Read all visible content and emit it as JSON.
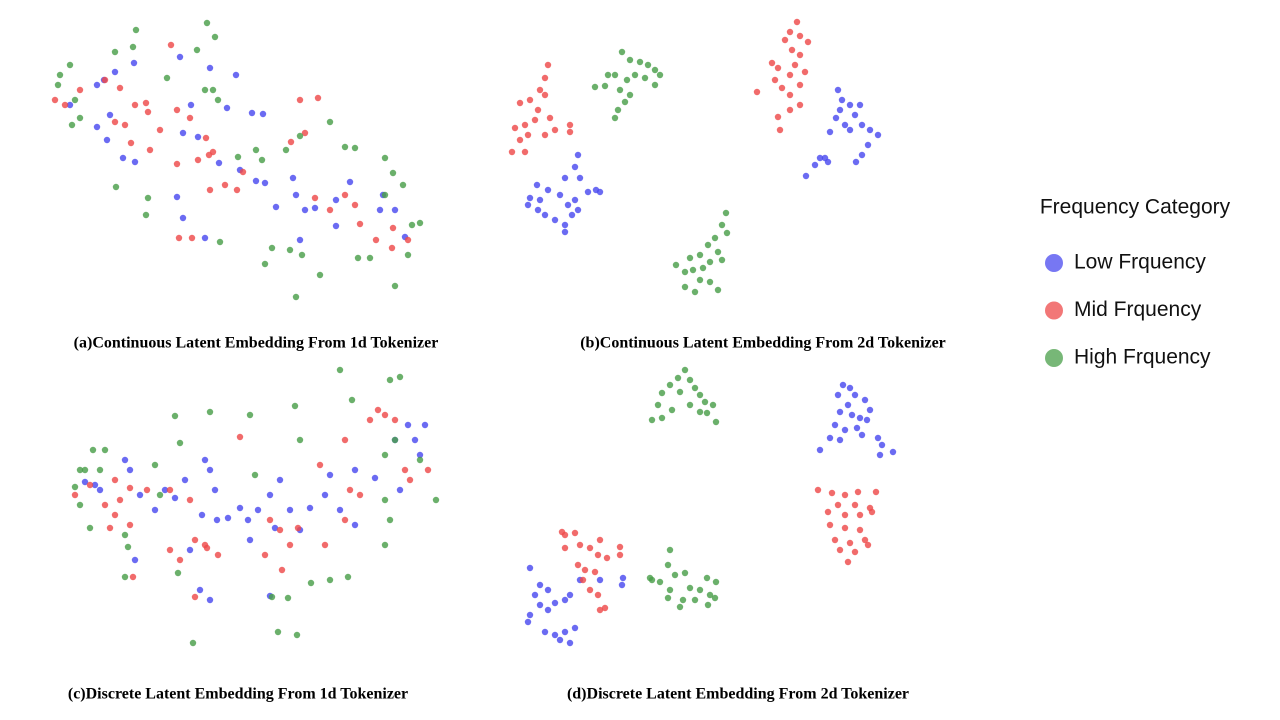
{
  "legend": {
    "title": "Frequency Category"
  },
  "chart_data": [
    {
      "type": "scatter",
      "title": "(a)Continuous Latent Embedding From 1d Tokenizer",
      "xlim": [
        40,
        440
      ],
      "ylim": [
        310,
        10
      ],
      "series": [
        {
          "name": "Low Frquency",
          "color": "#4a4aef",
          "x": [
            70,
            97,
            104,
            115,
            134,
            180,
            210,
            236,
            227,
            252,
            263,
            107,
            123,
            135,
            183,
            198,
            219,
            240,
            256,
            265,
            293,
            296,
            305,
            276,
            315,
            336,
            350,
            380,
            383,
            395,
            405,
            336,
            300,
            205,
            183,
            177,
            191,
            97,
            110
          ],
          "values": [
            105,
            85,
            80,
            72,
            63,
            57,
            68,
            75,
            108,
            113,
            114,
            140,
            158,
            162,
            133,
            137,
            163,
            170,
            181,
            183,
            178,
            195,
            210,
            207,
            208,
            200,
            182,
            210,
            195,
            210,
            237,
            226,
            240,
            238,
            218,
            197,
            105,
            127,
            115
          ]
        },
        {
          "name": "Mid Frquency",
          "color": "#ee4a4a",
          "x": [
            55,
            65,
            80,
            105,
            120,
            135,
            146,
            160,
            150,
            131,
            171,
            177,
            190,
            206,
            213,
            209,
            198,
            177,
            210,
            225,
            237,
            243,
            300,
            318,
            305,
            291,
            315,
            330,
            345,
            355,
            360,
            376,
            392,
            408,
            393,
            179,
            192,
            125,
            115,
            148
          ],
          "values": [
            100,
            105,
            90,
            80,
            88,
            105,
            103,
            130,
            150,
            143,
            45,
            110,
            118,
            138,
            152,
            155,
            160,
            164,
            190,
            185,
            190,
            172,
            100,
            98,
            133,
            142,
            198,
            210,
            195,
            205,
            224,
            240,
            248,
            240,
            228,
            238,
            238,
            125,
            122,
            112
          ]
        },
        {
          "name": "High Frquency",
          "color": "#4a9f4a",
          "x": [
            60,
            70,
            58,
            75,
            72,
            115,
            133,
            136,
            167,
            197,
            207,
            215,
            213,
            218,
            238,
            256,
            262,
            286,
            300,
            330,
            345,
            355,
            385,
            393,
            403,
            385,
            412,
            420,
            116,
            148,
            146,
            220,
            265,
            272,
            290,
            302,
            296,
            320,
            358,
            370,
            395,
            408,
            205,
            80
          ],
          "values": [
            75,
            65,
            85,
            100,
            125,
            52,
            47,
            30,
            78,
            50,
            23,
            37,
            90,
            100,
            157,
            150,
            160,
            150,
            136,
            122,
            147,
            148,
            158,
            173,
            185,
            195,
            225,
            223,
            187,
            198,
            215,
            242,
            264,
            248,
            250,
            255,
            297,
            275,
            258,
            258,
            286,
            255,
            90,
            118
          ]
        }
      ]
    },
    {
      "type": "scatter",
      "title": "(b)Continuous Latent Embedding From 2d Tokenizer",
      "xlim": [
        500,
        900
      ],
      "ylim": [
        310,
        10
      ],
      "series": [
        {
          "name": "Low Frquency",
          "color": "#4a4aef",
          "x": [
            578,
            575,
            565,
            537,
            530,
            528,
            540,
            548,
            560,
            568,
            575,
            578,
            572,
            565,
            565,
            545,
            538,
            555,
            596,
            600,
            588,
            580,
            838,
            842,
            840,
            850,
            860,
            855,
            845,
            850,
            862,
            870,
            878,
            868,
            862,
            856,
            836,
            830,
            820,
            815,
            828,
            806,
            825
          ],
          "values": [
            155,
            167,
            178,
            185,
            198,
            205,
            200,
            190,
            195,
            205,
            200,
            210,
            215,
            225,
            232,
            215,
            210,
            220,
            190,
            192,
            192,
            178,
            90,
            100,
            110,
            105,
            105,
            115,
            125,
            130,
            125,
            130,
            135,
            145,
            155,
            162,
            118,
            132,
            158,
            165,
            162,
            176,
            158
          ]
        },
        {
          "name": "Mid Frquency",
          "color": "#ee4a4a",
          "x": [
            548,
            545,
            540,
            545,
            530,
            520,
            538,
            535,
            525,
            515,
            520,
            512,
            525,
            545,
            555,
            570,
            570,
            550,
            528,
            797,
            790,
            800,
            808,
            785,
            792,
            800,
            795,
            805,
            790,
            778,
            772,
            775,
            782,
            790,
            800,
            790,
            778,
            780,
            757,
            800
          ],
          "values": [
            65,
            78,
            90,
            95,
            100,
            103,
            110,
            120,
            125,
            128,
            140,
            152,
            152,
            135,
            130,
            125,
            132,
            118,
            135,
            22,
            32,
            36,
            42,
            40,
            50,
            55,
            65,
            72,
            75,
            68,
            63,
            80,
            88,
            95,
            105,
            110,
            117,
            130,
            92,
            85
          ]
        },
        {
          "name": "High Frquency",
          "color": "#4a9f4a",
          "x": [
            622,
            630,
            640,
            648,
            655,
            660,
            645,
            635,
            627,
            615,
            608,
            595,
            605,
            620,
            630,
            625,
            615,
            618,
            655,
            726,
            722,
            715,
            708,
            718,
            700,
            710,
            722,
            690,
            676,
            685,
            693,
            700,
            710,
            718,
            695,
            685,
            727,
            703
          ],
          "values": [
            52,
            60,
            62,
            65,
            70,
            75,
            78,
            75,
            80,
            75,
            75,
            87,
            86,
            90,
            95,
            102,
            118,
            110,
            85,
            213,
            225,
            238,
            245,
            252,
            255,
            262,
            260,
            258,
            265,
            272,
            270,
            280,
            282,
            290,
            292,
            287,
            233,
            268
          ]
        }
      ]
    },
    {
      "type": "scatter",
      "title": "(c)Discrete Latent Embedding From 1d Tokenizer",
      "xlim": [
        40,
        450
      ],
      "ylim": [
        660,
        360
      ],
      "series": [
        {
          "name": "Low Frquency",
          "color": "#4a4aef",
          "x": [
            85,
            95,
            100,
            125,
            130,
            140,
            165,
            175,
            185,
            205,
            210,
            215,
            202,
            217,
            228,
            240,
            248,
            258,
            270,
            280,
            290,
            300,
            310,
            325,
            330,
            340,
            355,
            355,
            375,
            395,
            408,
            415,
            425,
            420,
            400,
            270,
            200,
            210,
            250,
            190,
            135,
            155,
            275
          ],
          "values": [
            482,
            485,
            490,
            460,
            470,
            495,
            490,
            498,
            480,
            460,
            470,
            490,
            515,
            520,
            518,
            508,
            520,
            510,
            495,
            480,
            510,
            530,
            508,
            495,
            475,
            510,
            470,
            525,
            478,
            440,
            425,
            440,
            425,
            455,
            490,
            596,
            590,
            600,
            540,
            550,
            560,
            510,
            528
          ]
        },
        {
          "name": "Mid Frquency",
          "color": "#ee4a4a",
          "x": [
            75,
            90,
            105,
            115,
            130,
            120,
            115,
            130,
            110,
            147,
            170,
            190,
            170,
            180,
            195,
            207,
            218,
            240,
            270,
            280,
            290,
            265,
            282,
            298,
            320,
            345,
            350,
            360,
            370,
            378,
            385,
            395,
            405,
            410,
            428,
            133,
            205,
            195,
            345,
            325
          ],
          "values": [
            495,
            485,
            505,
            480,
            488,
            500,
            515,
            525,
            528,
            490,
            490,
            500,
            550,
            560,
            540,
            548,
            555,
            437,
            520,
            530,
            545,
            555,
            570,
            528,
            465,
            440,
            490,
            495,
            420,
            410,
            415,
            420,
            470,
            480,
            470,
            577,
            545,
            597,
            520,
            545
          ]
        },
        {
          "name": "High Frquency",
          "color": "#4a9f4a",
          "x": [
            80,
            85,
            75,
            93,
            105,
            100,
            80,
            90,
            125,
            128,
            125,
            155,
            160,
            175,
            180,
            210,
            178,
            250,
            255,
            295,
            300,
            340,
            352,
            390,
            400,
            395,
            385,
            385,
            390,
            385,
            330,
            348,
            311,
            288,
            272,
            278,
            297,
            193,
            436,
            420
          ],
          "values": [
            470,
            470,
            487,
            450,
            450,
            470,
            505,
            528,
            535,
            547,
            577,
            465,
            495,
            416,
            443,
            412,
            573,
            415,
            475,
            406,
            440,
            370,
            400,
            380,
            377,
            440,
            455,
            500,
            520,
            545,
            580,
            577,
            583,
            598,
            597,
            632,
            635,
            643,
            500,
            460
          ]
        }
      ]
    },
    {
      "type": "scatter",
      "title": "(d)Discrete Latent Embedding From 2d Tokenizer",
      "xlim": [
        500,
        900
      ],
      "ylim": [
        660,
        360
      ],
      "series": [
        {
          "name": "Low Frquency",
          "color": "#4a4aef",
          "x": [
            843,
            850,
            838,
            855,
            865,
            848,
            840,
            852,
            860,
            870,
            835,
            845,
            857,
            862,
            830,
            840,
            878,
            882,
            893,
            880,
            820,
            867,
            530,
            540,
            548,
            540,
            555,
            565,
            570,
            548,
            530,
            528,
            545,
            555,
            560,
            570,
            575,
            565,
            623,
            622,
            535,
            580,
            600
          ],
          "values": [
            385,
            388,
            395,
            395,
            400,
            405,
            412,
            415,
            418,
            410,
            425,
            430,
            428,
            435,
            438,
            440,
            438,
            445,
            452,
            455,
            450,
            420,
            568,
            585,
            590,
            605,
            603,
            600,
            595,
            610,
            615,
            622,
            632,
            635,
            640,
            643,
            628,
            632,
            578,
            585,
            595,
            580,
            580
          ]
        },
        {
          "name": "Mid Frquency",
          "color": "#ee4a4a",
          "x": [
            818,
            832,
            845,
            858,
            876,
            838,
            855,
            870,
            828,
            845,
            860,
            872,
            830,
            845,
            860,
            835,
            850,
            865,
            840,
            855,
            848,
            868,
            562,
            575,
            580,
            565,
            590,
            598,
            607,
            620,
            620,
            578,
            585,
            595,
            583,
            590,
            598,
            600,
            605,
            565,
            600
          ],
          "values": [
            490,
            493,
            495,
            492,
            492,
            505,
            505,
            508,
            512,
            515,
            515,
            512,
            525,
            528,
            530,
            540,
            543,
            540,
            550,
            552,
            562,
            545,
            532,
            533,
            545,
            548,
            548,
            555,
            558,
            547,
            555,
            565,
            570,
            572,
            580,
            590,
            595,
            610,
            608,
            535,
            540
          ]
        },
        {
          "name": "High Frquency",
          "color": "#4a9f4a",
          "x": [
            685,
            678,
            690,
            670,
            695,
            662,
            680,
            700,
            705,
            713,
            658,
            672,
            690,
            662,
            652,
            700,
            716,
            707,
            670,
            668,
            650,
            660,
            675,
            685,
            707,
            716,
            690,
            700,
            710,
            670,
            683,
            668,
            715,
            695,
            680,
            708,
            652
          ],
          "values": [
            370,
            378,
            380,
            385,
            388,
            393,
            392,
            395,
            402,
            405,
            405,
            410,
            405,
            418,
            420,
            412,
            422,
            413,
            550,
            565,
            578,
            582,
            575,
            573,
            578,
            582,
            588,
            590,
            595,
            590,
            600,
            598,
            598,
            600,
            607,
            605,
            580
          ]
        }
      ]
    }
  ]
}
